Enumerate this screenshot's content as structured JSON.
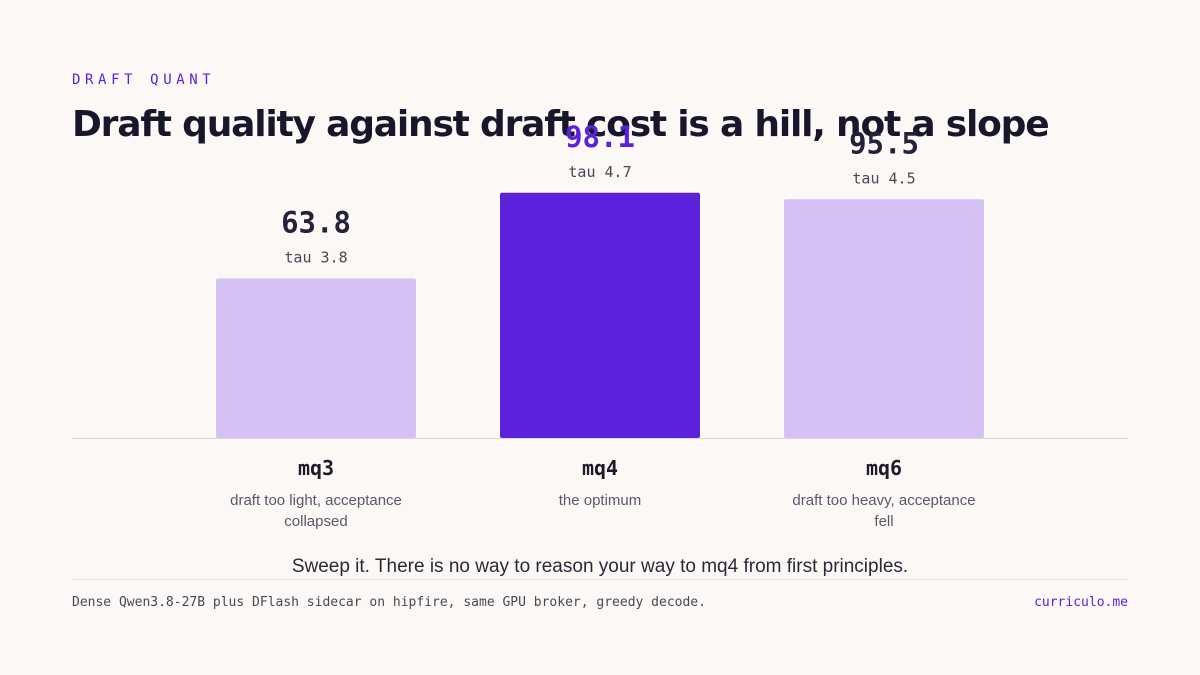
{
  "eyebrow": "DRAFT QUANT",
  "title": "Draft quality against draft cost is a hill, not a slope",
  "colors": {
    "accent": "#5c21da",
    "bar_muted": "#d4c2f5",
    "background": "#fcf8f5",
    "text": "#1c1a2b"
  },
  "chart_data": {
    "type": "bar",
    "categories": [
      "mq3",
      "mq4",
      "mq6"
    ],
    "values": [
      63.8,
      98.1,
      95.5
    ],
    "value_labels": [
      "63.8",
      "98.1",
      "95.5"
    ],
    "secondary_labels": [
      "tau 3.8",
      "tau 4.7",
      "tau 4.5"
    ],
    "descriptions": [
      "draft too light, acceptance collapsed",
      "the optimum",
      "draft too heavy, acceptance fell"
    ],
    "highlight": "mq4",
    "ylim": [
      0,
      100
    ],
    "grid": false
  },
  "takeaway": "Sweep it. There is no way to reason your way to mq4 from first principles.",
  "footer": {
    "note": "Dense Qwen3.8-27B plus DFlash sidecar on hipfire, same GPU broker, greedy decode.",
    "brand": "curriculo.me"
  }
}
